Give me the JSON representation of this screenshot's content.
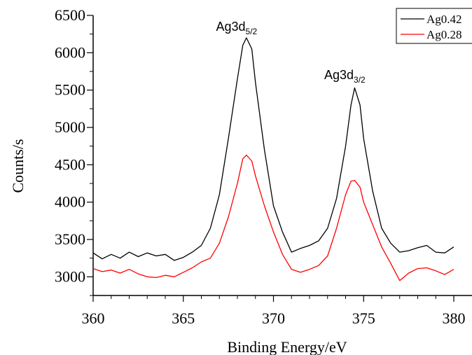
{
  "chart_data": {
    "type": "line",
    "title": "",
    "xlabel": "Binding Energy/eV",
    "ylabel": "Counts/s",
    "xlim": [
      360,
      380.5
    ],
    "ylim": [
      2750,
      6500
    ],
    "x_ticks": [
      "360",
      "365",
      "370",
      "375",
      "380"
    ],
    "y_ticks": [
      "3000",
      "3500",
      "4000",
      "4500",
      "5000",
      "5500",
      "6000",
      "6500"
    ],
    "grid": false,
    "legend_position": "top-right",
    "series": [
      {
        "name": "Ag0.42",
        "color": "#000000",
        "x": [
          360,
          360.5,
          361,
          361.5,
          362,
          362.5,
          363,
          363.5,
          364,
          364.5,
          365,
          365.5,
          366,
          366.5,
          367,
          367.5,
          368,
          368.3,
          368.5,
          368.8,
          369,
          369.5,
          370,
          370.5,
          371,
          371.5,
          372,
          372.5,
          373,
          373.5,
          374,
          374.3,
          374.5,
          374.8,
          375,
          375.5,
          376,
          376.5,
          377,
          377.5,
          378,
          378.5,
          379,
          379.5,
          380
        ],
        "y": [
          3320,
          3240,
          3300,
          3250,
          3330,
          3270,
          3320,
          3280,
          3300,
          3220,
          3260,
          3330,
          3420,
          3650,
          4100,
          4850,
          5650,
          6100,
          6200,
          6050,
          5600,
          4700,
          3950,
          3600,
          3330,
          3380,
          3420,
          3480,
          3650,
          4050,
          4750,
          5300,
          5530,
          5300,
          4850,
          4150,
          3650,
          3450,
          3330,
          3350,
          3390,
          3420,
          3330,
          3320,
          3400
        ]
      },
      {
        "name": "Ag0.28",
        "color": "#ff0000",
        "x": [
          360,
          360.5,
          361,
          361.5,
          362,
          362.5,
          363,
          363.5,
          364,
          364.5,
          365,
          365.5,
          366,
          366.5,
          367,
          367.5,
          368,
          368.3,
          368.5,
          368.8,
          369,
          369.5,
          370,
          370.5,
          371,
          371.5,
          372,
          372.5,
          373,
          373.5,
          374,
          374.3,
          374.5,
          374.8,
          375,
          375.5,
          376,
          376.5,
          377,
          377.5,
          378,
          378.5,
          379,
          379.5,
          380
        ],
        "y": [
          3110,
          3070,
          3090,
          3050,
          3100,
          3040,
          3000,
          2990,
          3020,
          3000,
          3060,
          3120,
          3200,
          3250,
          3450,
          3800,
          4250,
          4580,
          4630,
          4550,
          4350,
          3950,
          3600,
          3300,
          3100,
          3060,
          3100,
          3150,
          3280,
          3650,
          4100,
          4280,
          4290,
          4200,
          4000,
          3700,
          3400,
          3180,
          2950,
          3050,
          3110,
          3120,
          3080,
          3030,
          3100
        ]
      }
    ],
    "annotations": [
      {
        "base": "Ag3d",
        "sub": "5/2",
        "x": 368.5
      },
      {
        "base": "Ag3d",
        "sub": "3/2",
        "x": 374.5
      }
    ]
  }
}
